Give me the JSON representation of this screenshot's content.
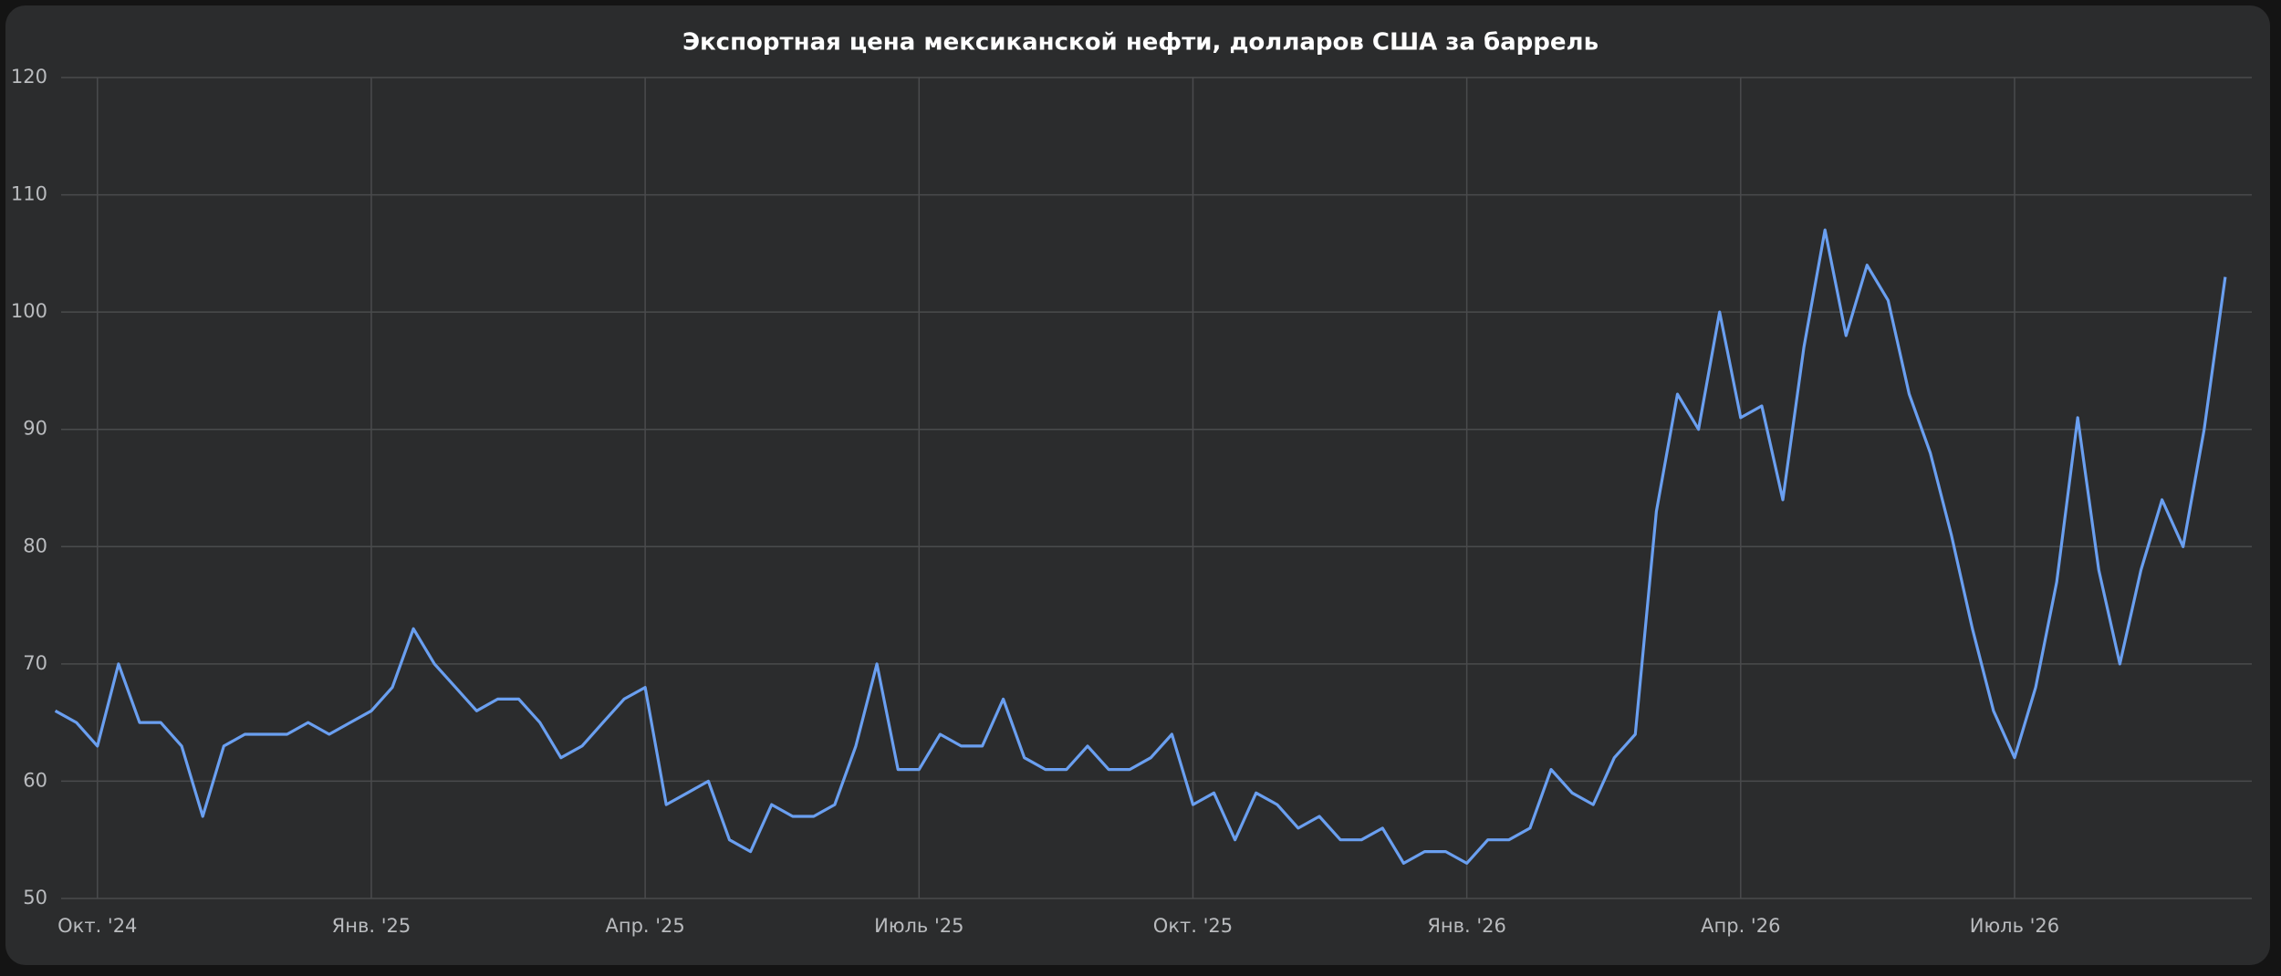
{
  "chart_data": {
    "type": "line",
    "title": "Экспортная цена мексиканской нефти, долларов США за баррель",
    "categories": [
      null,
      null,
      "Окт. '24",
      null,
      null,
      null,
      null,
      null,
      null,
      null,
      null,
      null,
      null,
      null,
      null,
      "Янв. '25",
      null,
      null,
      null,
      null,
      null,
      null,
      null,
      null,
      null,
      null,
      null,
      null,
      "Апр. '25",
      null,
      null,
      null,
      null,
      null,
      null,
      null,
      null,
      null,
      null,
      null,
      null,
      "Июль '25",
      null,
      null,
      null,
      null,
      null,
      null,
      null,
      null,
      null,
      null,
      null,
      null,
      "Окт. '25",
      null,
      null,
      null,
      null,
      null,
      null,
      null,
      null,
      null,
      null,
      null,
      null,
      "Янв. '26",
      null,
      null,
      null,
      null,
      null,
      null,
      null,
      null,
      null,
      null,
      null,
      null,
      "Апр. '26",
      null,
      null,
      null,
      null,
      null,
      null,
      null,
      null,
      null,
      null,
      null,
      null,
      "Июль '26",
      null,
      null,
      null,
      null,
      null,
      null,
      null,
      null,
      null,
      null
    ],
    "values": [
      66,
      65,
      63,
      70,
      65,
      65,
      63,
      57,
      63,
      64,
      64,
      64,
      65,
      64,
      65,
      66,
      68,
      73,
      70,
      68,
      66,
      67,
      67,
      65,
      62,
      63,
      65,
      67,
      68,
      58,
      59,
      60,
      55,
      54,
      58,
      57,
      57,
      58,
      63,
      70,
      61,
      61,
      64,
      63,
      63,
      67,
      62,
      61,
      61,
      63,
      61,
      61,
      62,
      64,
      58,
      59,
      55,
      59,
      58,
      56,
      57,
      55,
      55,
      56,
      53,
      54,
      54,
      53,
      55,
      55,
      56,
      61,
      59,
      58,
      62,
      64,
      83,
      93,
      90,
      100,
      91,
      92,
      84,
      97,
      107,
      98,
      104,
      101,
      93,
      88,
      81,
      73,
      66,
      62,
      68,
      77,
      91,
      78,
      70,
      78,
      84,
      80,
      90,
      103
    ],
    "color": "#6a9ff0",
    "ylim": [
      50,
      120
    ],
    "yticks": [
      50,
      60,
      70,
      80,
      90,
      100,
      110,
      120
    ],
    "grid": true
  }
}
